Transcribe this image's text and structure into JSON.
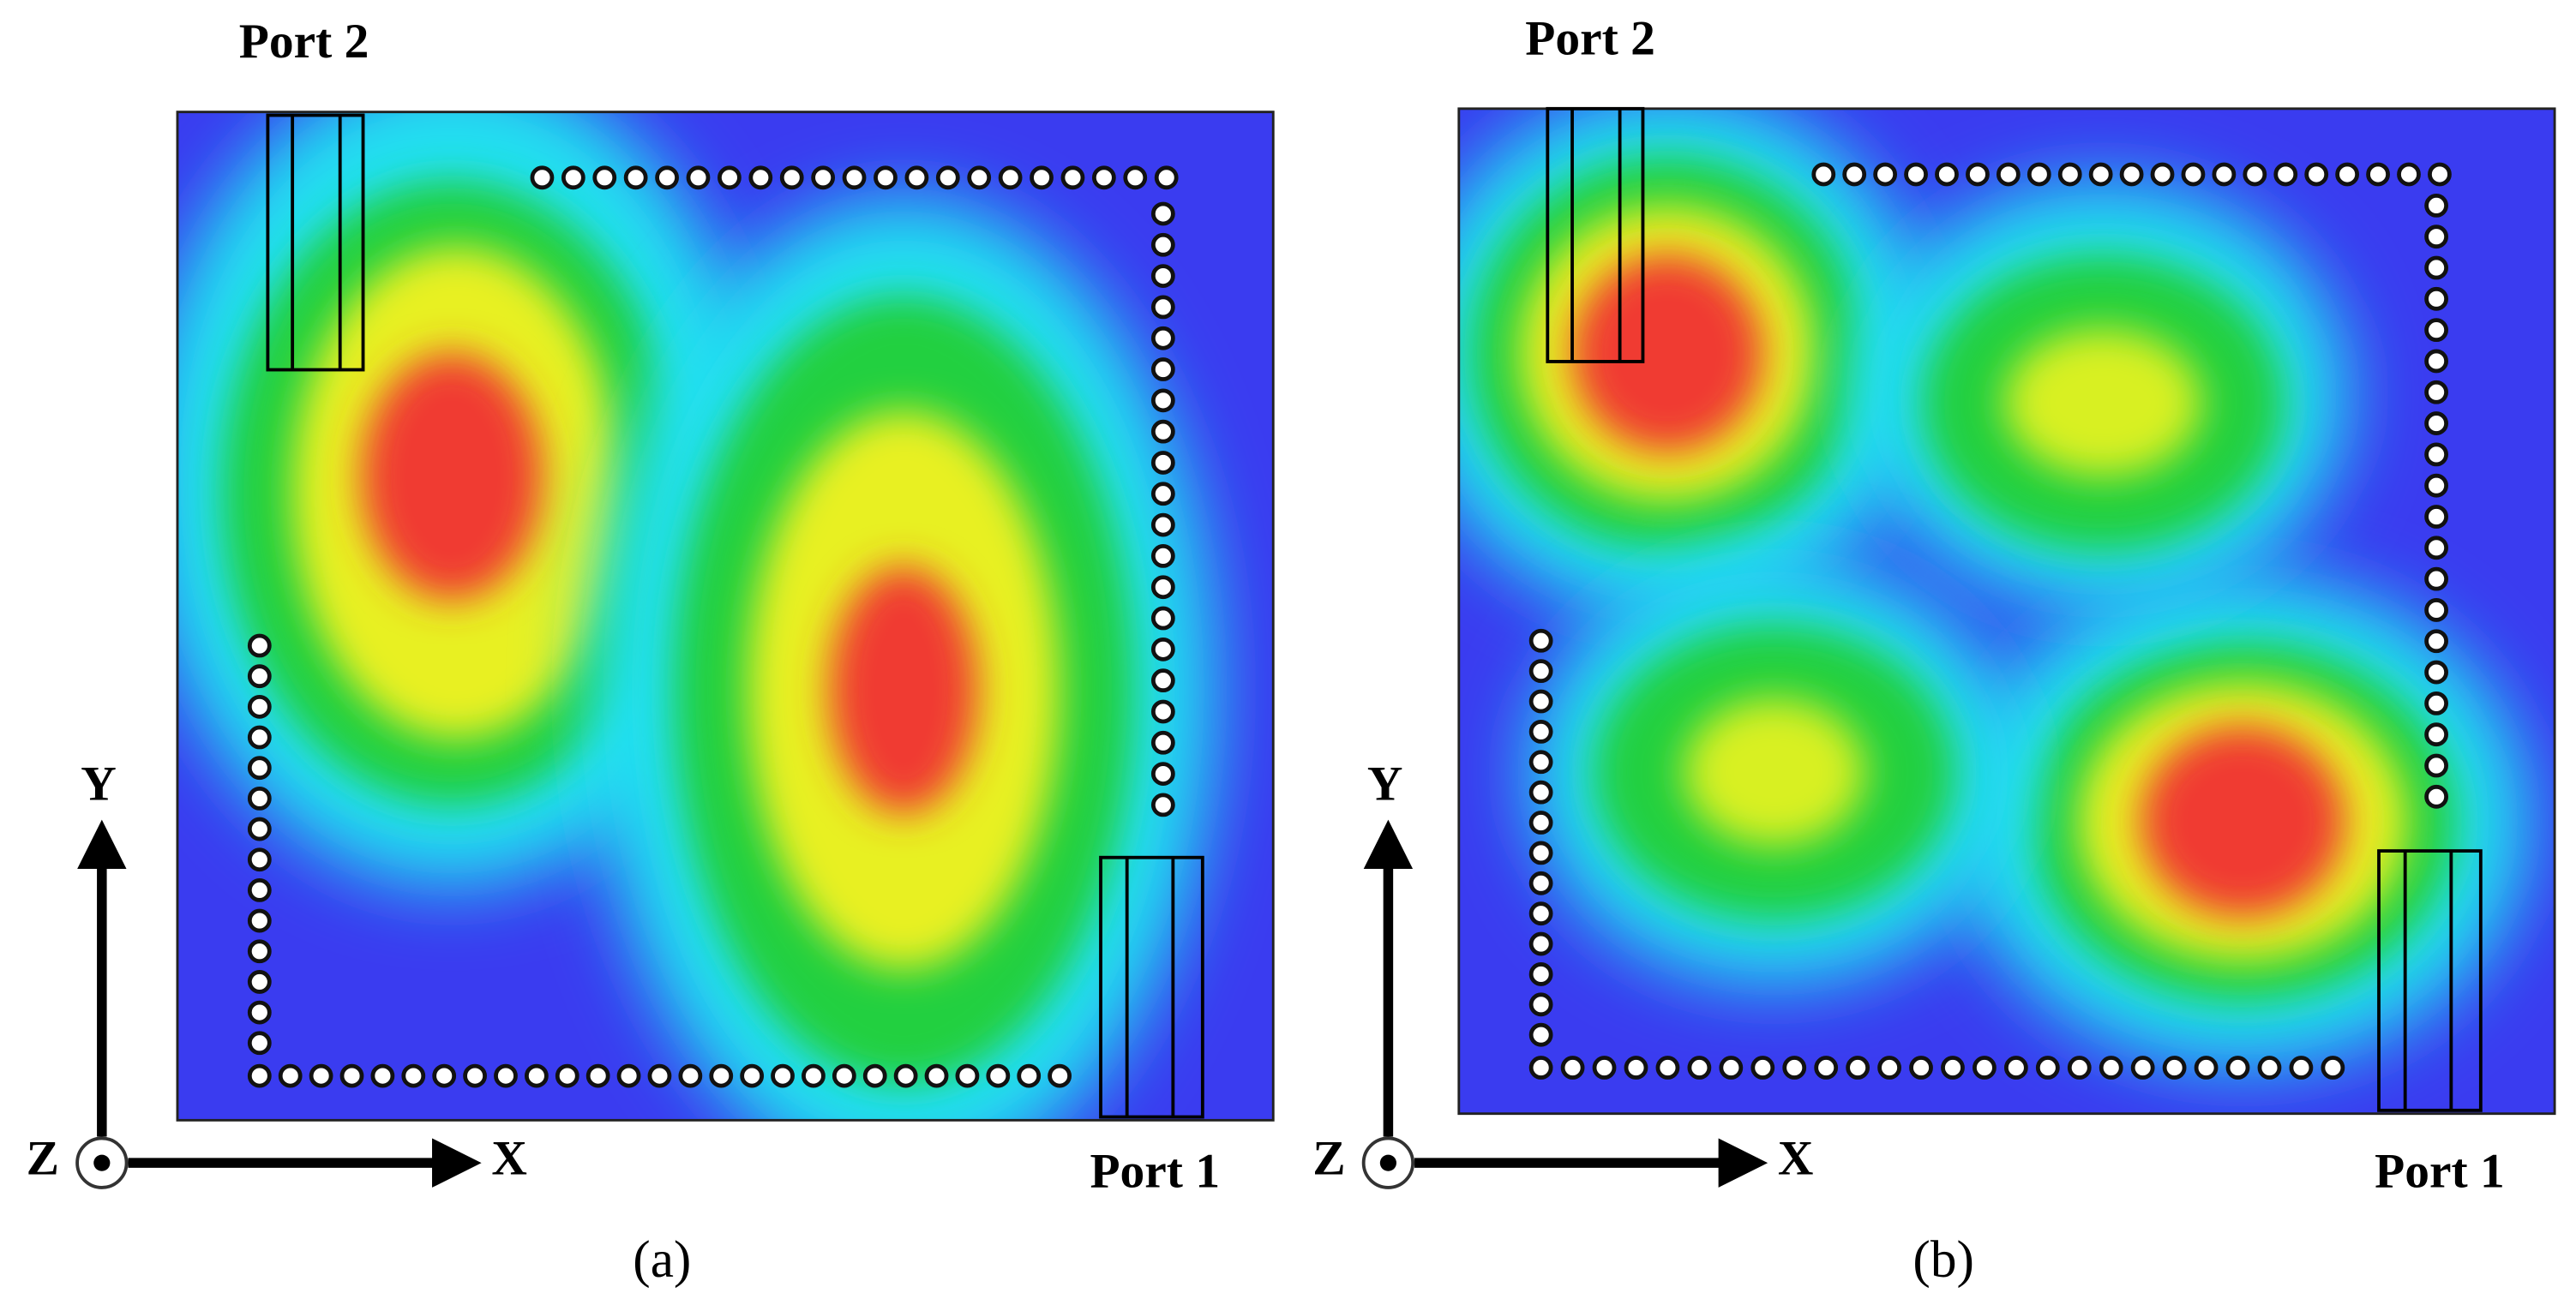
{
  "panels": [
    {
      "caption": "(a)",
      "port_top": "Port 2",
      "port_bottom": "Port 1",
      "axis_x": "X",
      "axis_y": "Y",
      "axis_z": "Z"
    },
    {
      "caption": "(b)",
      "port_top": "Port 2",
      "port_bottom": "Port 1",
      "axis_x": "X",
      "axis_y": "Y",
      "axis_z": "Z"
    }
  ]
}
